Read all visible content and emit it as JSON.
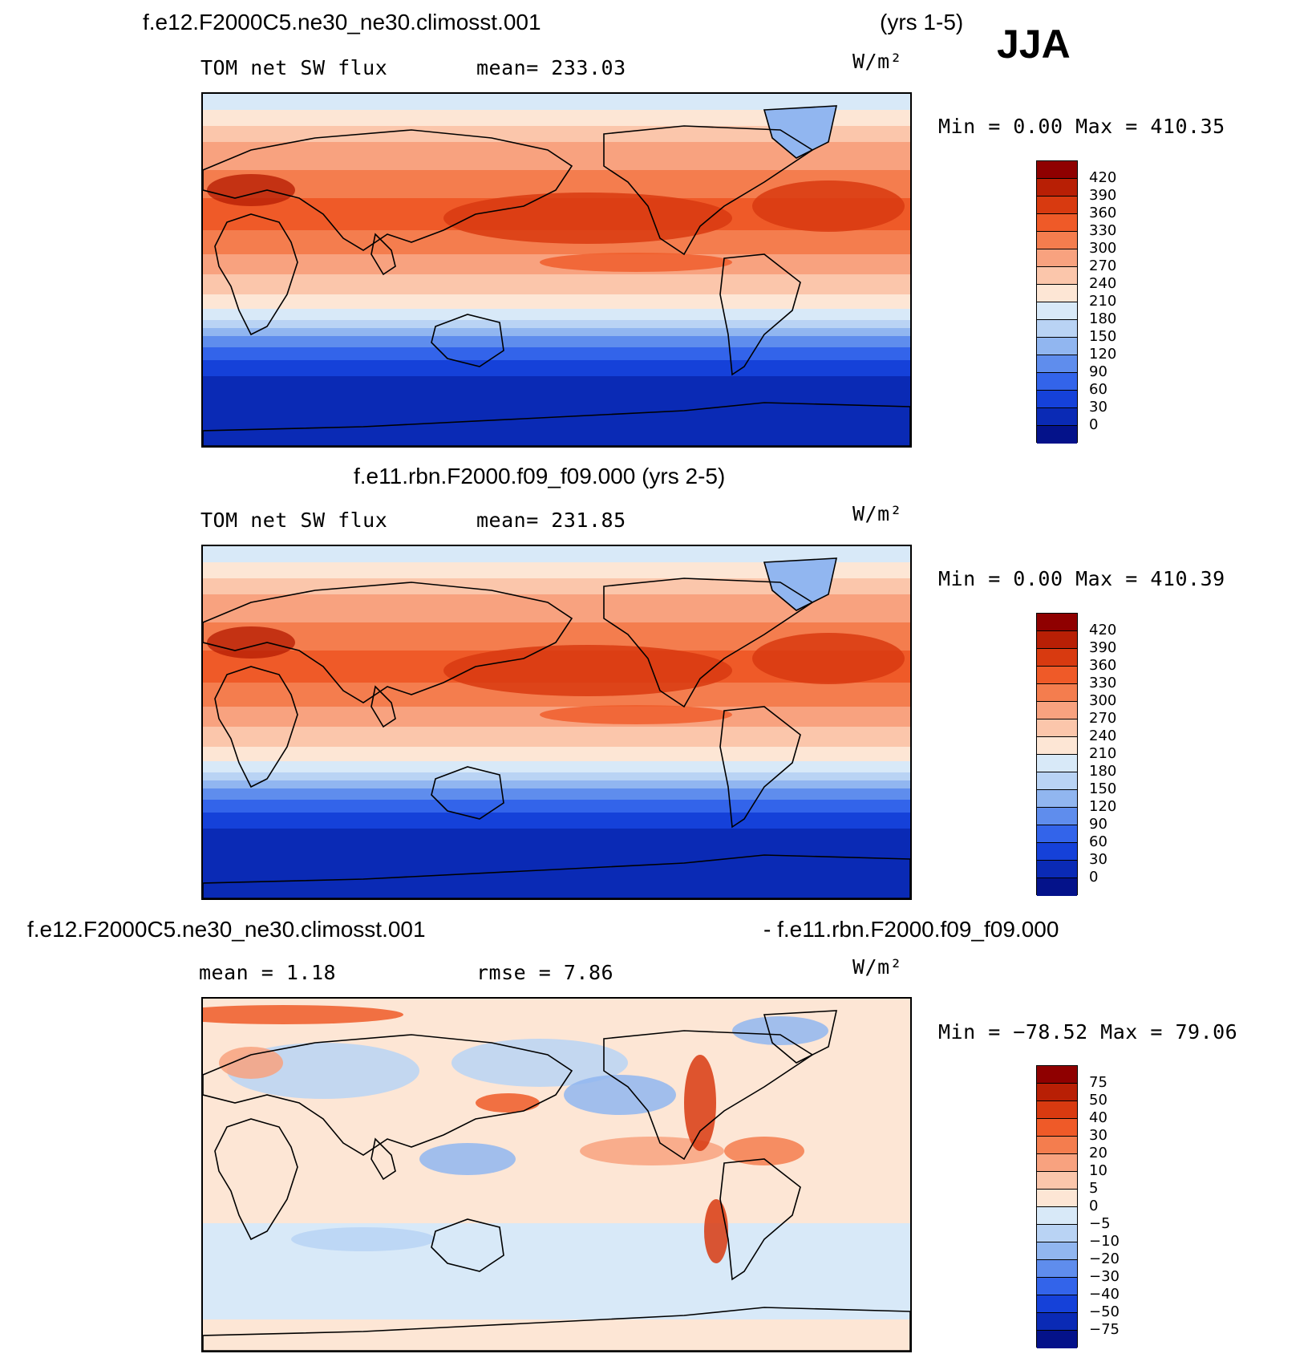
{
  "season": "JJA",
  "units_label": "W/m²",
  "panels": [
    {
      "title": "f.e12.F2000C5.ne30_ne30.climosst.001",
      "years": "(yrs 1-5)",
      "field_label": "TOM net SW flux",
      "stat_label": "mean= 233.03",
      "minmax": "Min =    0.00 Max = 410.35",
      "levels": [
        "420",
        "390",
        "360",
        "330",
        "300",
        "270",
        "240",
        "210",
        "180",
        "150",
        "120",
        "90",
        "60",
        "30",
        "0"
      ],
      "colors": [
        "#8f0000",
        "#b81f05",
        "#d83a10",
        "#ef5a28",
        "#f47d4e",
        "#f8a27f",
        "#fbc6ab",
        "#fde6d5",
        "#d8e9f8",
        "#b9d3f4",
        "#91b6f0",
        "#5f8ded",
        "#3364ea",
        "#1541d9",
        "#0a2ab5",
        "#04128a"
      ],
      "map_type": "sw"
    },
    {
      "title": "f.e11.rbn.F2000.f09_f09.000 (yrs 2-5)",
      "field_label": "TOM net SW flux",
      "stat_label": "mean= 231.85",
      "minmax": "Min =    0.00 Max = 410.39",
      "levels": [
        "420",
        "390",
        "360",
        "330",
        "300",
        "270",
        "240",
        "210",
        "180",
        "150",
        "120",
        "90",
        "60",
        "30",
        "0"
      ],
      "colors": [
        "#8f0000",
        "#b81f05",
        "#d83a10",
        "#ef5a28",
        "#f47d4e",
        "#f8a27f",
        "#fbc6ab",
        "#fde6d5",
        "#d8e9f8",
        "#b9d3f4",
        "#91b6f0",
        "#5f8ded",
        "#3364ea",
        "#1541d9",
        "#0a2ab5",
        "#04128a"
      ],
      "map_type": "sw"
    },
    {
      "title": "f.e12.F2000C5.ne30_ne30.climosst.001",
      "title_right": "- f.e11.rbn.F2000.f09_f09.000",
      "stat_mean": "mean =    1.18",
      "stat_rmse": "rmse =    7.86",
      "minmax": "Min = −78.52 Max =   79.06",
      "levels": [
        "75",
        "50",
        "40",
        "30",
        "20",
        "10",
        "5",
        "0",
        "−5",
        "−10",
        "−20",
        "−30",
        "−40",
        "−50",
        "−75"
      ],
      "colors": [
        "#8f0000",
        "#b81f05",
        "#d83a10",
        "#ef5a28",
        "#f47d4e",
        "#f8a27f",
        "#fbc6ab",
        "#fde6d5",
        "#d8e9f8",
        "#b9d3f4",
        "#91b6f0",
        "#5f8ded",
        "#3364ea",
        "#1541d9",
        "#0a2ab5",
        "#04128a"
      ],
      "map_type": "diff"
    }
  ]
}
